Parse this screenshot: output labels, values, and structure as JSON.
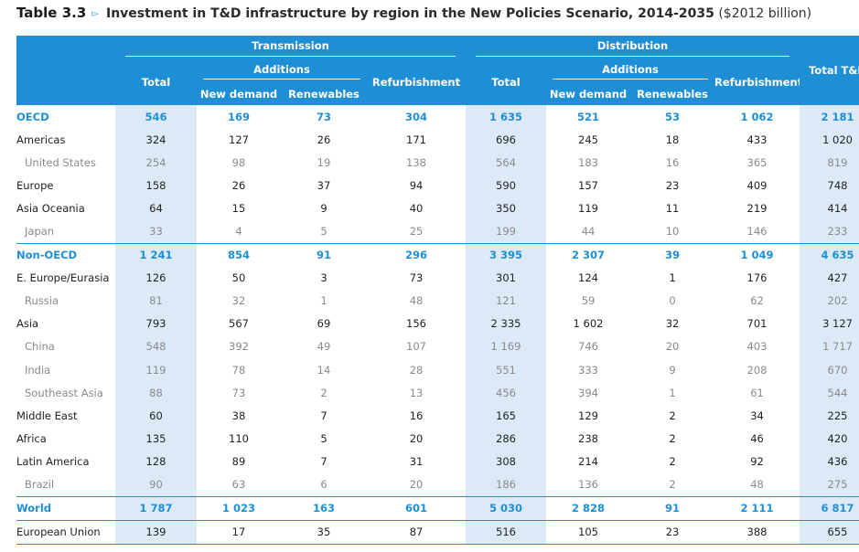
{
  "caption": {
    "number": "Table 3.3",
    "arrow": "▻",
    "title": "Investment in T&D infrastructure by region in the New Policies Scenario, 2014-2035",
    "unit": "($2012 billion)"
  },
  "header": {
    "transmission": "Transmission",
    "distribution": "Distribution",
    "additions": "Additions",
    "total": "Total",
    "refurbishment": "Refurbishment",
    "new_demand": "New demand",
    "renewables": "Renewables",
    "total_td": "Total T&D"
  },
  "rows": [
    {
      "label": "OECD",
      "values": [
        "546",
        "169",
        "73",
        "304",
        "1 635",
        "521",
        "53",
        "1 062",
        "2 181"
      ]
    },
    {
      "label": "Americas",
      "values": [
        "324",
        "127",
        "26",
        "171",
        "696",
        "245",
        "18",
        "433",
        "1 020"
      ]
    },
    {
      "label": "United States",
      "values": [
        "254",
        "98",
        "19",
        "138",
        "564",
        "183",
        "16",
        "365",
        "819"
      ]
    },
    {
      "label": "Europe",
      "values": [
        "158",
        "26",
        "37",
        "94",
        "590",
        "157",
        "23",
        "409",
        "748"
      ]
    },
    {
      "label": "Asia Oceania",
      "values": [
        "64",
        "15",
        "9",
        "40",
        "350",
        "119",
        "11",
        "219",
        "414"
      ]
    },
    {
      "label": "Japan",
      "values": [
        "33",
        "4",
        "5",
        "25",
        "199",
        "44",
        "10",
        "146",
        "233"
      ]
    },
    {
      "label": "Non-OECD",
      "values": [
        "1 241",
        "854",
        "91",
        "296",
        "3 395",
        "2 307",
        "39",
        "1 049",
        "4 635"
      ]
    },
    {
      "label": "E. Europe/Eurasia",
      "values": [
        "126",
        "50",
        "3",
        "73",
        "301",
        "124",
        "1",
        "176",
        "427"
      ]
    },
    {
      "label": "Russia",
      "values": [
        "81",
        "32",
        "1",
        "48",
        "121",
        "59",
        "0",
        "62",
        "202"
      ]
    },
    {
      "label": "Asia",
      "values": [
        "793",
        "567",
        "69",
        "156",
        "2 335",
        "1 602",
        "32",
        "701",
        "3 127"
      ]
    },
    {
      "label": "China",
      "values": [
        "548",
        "392",
        "49",
        "107",
        "1 169",
        "746",
        "20",
        "403",
        "1 717"
      ]
    },
    {
      "label": "India",
      "values": [
        "119",
        "78",
        "14",
        "28",
        "551",
        "333",
        "9",
        "208",
        "670"
      ]
    },
    {
      "label": "Southeast Asia",
      "values": [
        "88",
        "73",
        "2",
        "13",
        "456",
        "394",
        "1",
        "61",
        "544"
      ]
    },
    {
      "label": "Middle East",
      "values": [
        "60",
        "38",
        "7",
        "16",
        "165",
        "129",
        "2",
        "34",
        "225"
      ]
    },
    {
      "label": "Africa",
      "values": [
        "135",
        "110",
        "5",
        "20",
        "286",
        "238",
        "2",
        "46",
        "420"
      ]
    },
    {
      "label": "Latin America",
      "values": [
        "128",
        "89",
        "7",
        "31",
        "308",
        "214",
        "2",
        "92",
        "436"
      ]
    },
    {
      "label": "Brazil",
      "values": [
        "90",
        "63",
        "6",
        "20",
        "186",
        "136",
        "2",
        "48",
        "275"
      ]
    },
    {
      "label": "World",
      "values": [
        "1 787",
        "1 023",
        "163",
        "601",
        "5 030",
        "2 828",
        "91",
        "2 111",
        "6 817"
      ]
    },
    {
      "label": "European Union",
      "values": [
        "139",
        "17",
        "35",
        "87",
        "516",
        "105",
        "23",
        "388",
        "655"
      ]
    }
  ],
  "colors": {
    "header_blue": "#1e8fd5",
    "shade_blue": "#dceaf7",
    "sub_grey": "#8a8a8a"
  }
}
